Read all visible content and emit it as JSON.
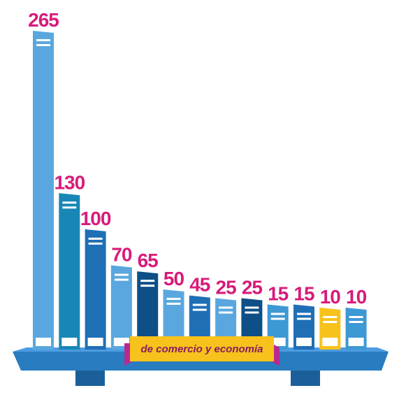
{
  "chart_data": {
    "type": "bar",
    "values": [
      265,
      130,
      100,
      70,
      65,
      50,
      45,
      25,
      25,
      15,
      15,
      10,
      10
    ],
    "data_labels": [
      "265",
      "130",
      "100",
      "70",
      "65",
      "50",
      "45",
      "25",
      "25",
      "15",
      "15",
      "10",
      "10"
    ],
    "highlight_index": 11,
    "ylim": [
      0,
      265
    ],
    "grid": false,
    "legend": "none",
    "annotation": "de comercio y economía",
    "colors": {
      "bars": [
        "#5aa7df",
        "#1887b6",
        "#1f6fb5",
        "#5aa7df",
        "#0d4f86",
        "#5aa7df",
        "#1f6fb5",
        "#5aa7df",
        "#0d4f86",
        "#3d99d4",
        "#1f6fb5",
        "#f7c21c",
        "#3d99d4"
      ],
      "value_labels": "#d81b7a",
      "shelf": "#2a7cc0",
      "shelf_dark": "#1b5f9a",
      "banner": "#f7c21c",
      "banner_ribbon": "#b8298f"
    }
  }
}
